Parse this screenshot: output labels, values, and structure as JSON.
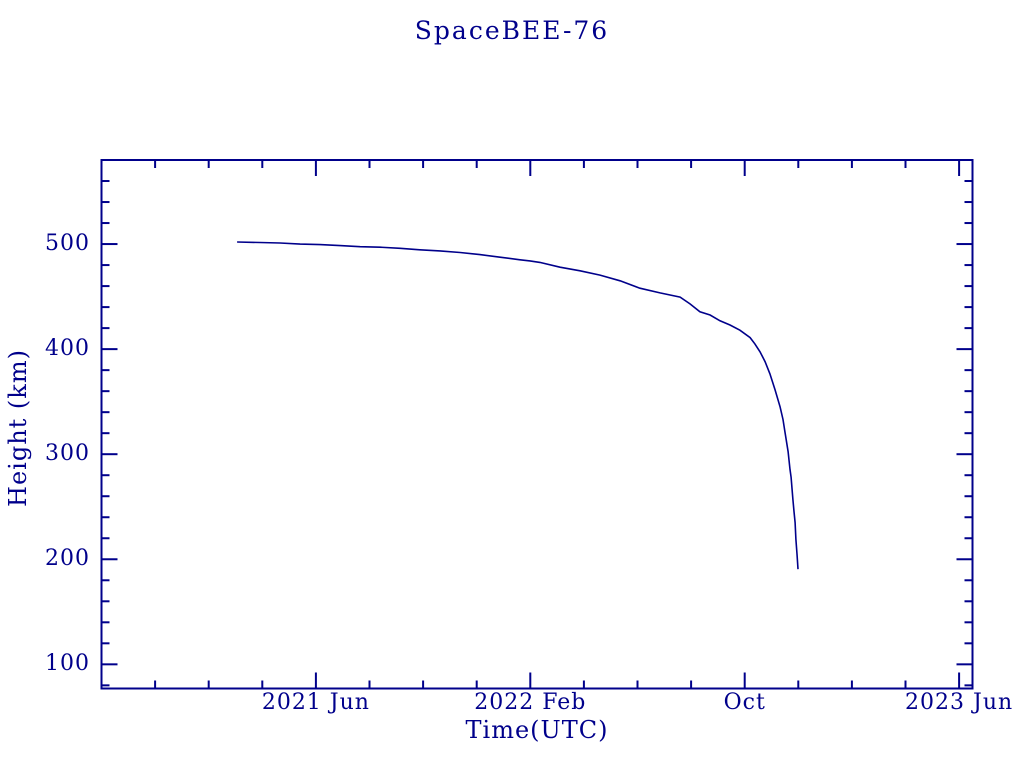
{
  "page": {
    "background_color": "#ffffff",
    "accent_color": "#00008b"
  },
  "chart_data": {
    "type": "line",
    "title": "SpaceBEE-76",
    "xlabel": "Time(UTC)",
    "ylabel": "Height (km)",
    "line_color": "#00008b",
    "axis_color": "#00008b",
    "grid": false,
    "legend": null,
    "x_unit": "months since 2020-10",
    "xlim": [
      0,
      32.5
    ],
    "ylim": [
      77,
      580
    ],
    "x_major_ticks": [
      {
        "t": 8,
        "label": "2021 Jun"
      },
      {
        "t": 16,
        "label": "2022 Feb"
      },
      {
        "t": 24,
        "label": "Oct"
      },
      {
        "t": 32,
        "label": "2023 Jun"
      }
    ],
    "x_minor_step": 2,
    "y_major_ticks": [
      {
        "v": 100,
        "label": "100"
      },
      {
        "v": 200,
        "label": "200"
      },
      {
        "v": 300,
        "label": "300"
      },
      {
        "v": 400,
        "label": "400"
      },
      {
        "v": 500,
        "label": "500"
      }
    ],
    "y_minor_step": 20,
    "series": [
      {
        "name": "SpaceBEE-76 height (km)",
        "start_label": "2021 Mar, 502 km",
        "end_label": "2022 Dec, 190 km",
        "points": [
          [
            5.06,
            502
          ],
          [
            5.91,
            501.5
          ],
          [
            6.66,
            501
          ],
          [
            7.41,
            500
          ],
          [
            8.15,
            499.5
          ],
          [
            8.9,
            498.5
          ],
          [
            9.65,
            497.5
          ],
          [
            10.39,
            497
          ],
          [
            11.14,
            496
          ],
          [
            11.88,
            494.5
          ],
          [
            12.63,
            493.5
          ],
          [
            13.38,
            492
          ],
          [
            14.12,
            490
          ],
          [
            14.87,
            487.5
          ],
          [
            15.62,
            485
          ],
          [
            15.99,
            484
          ],
          [
            16.36,
            482.5
          ],
          [
            17.11,
            478
          ],
          [
            17.86,
            474.5
          ],
          [
            18.6,
            470.5
          ],
          [
            19.35,
            465
          ],
          [
            20.09,
            458
          ],
          [
            20.84,
            453.5
          ],
          [
            21.59,
            449.5
          ],
          [
            21.96,
            443
          ],
          [
            22.33,
            435.5
          ],
          [
            22.71,
            432.5
          ],
          [
            23.08,
            427
          ],
          [
            23.45,
            423
          ],
          [
            23.82,
            418
          ],
          [
            24.2,
            411
          ],
          [
            24.38,
            405
          ],
          [
            24.57,
            397.5
          ],
          [
            24.76,
            388
          ],
          [
            24.94,
            376.5
          ],
          [
            25.13,
            361.5
          ],
          [
            25.32,
            345
          ],
          [
            25.43,
            333
          ],
          [
            25.5,
            321.5
          ],
          [
            25.62,
            302.5
          ],
          [
            25.69,
            285.5
          ],
          [
            25.73,
            278
          ],
          [
            25.8,
            257
          ],
          [
            25.84,
            245.5
          ],
          [
            25.88,
            235
          ],
          [
            25.91,
            219
          ],
          [
            25.95,
            205
          ],
          [
            25.97,
            198
          ],
          [
            25.99,
            190.5
          ]
        ]
      }
    ]
  }
}
